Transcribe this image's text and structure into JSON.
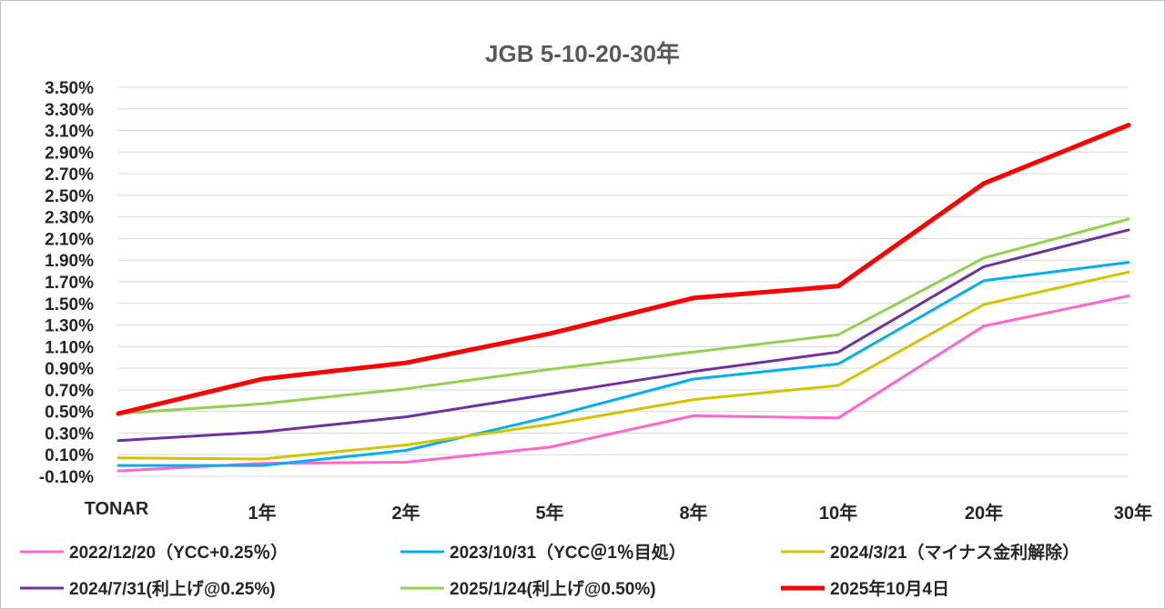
{
  "chart_data": {
    "type": "line",
    "title": "JGB 5-10-20-30年",
    "categories": [
      "TONAR",
      "1年",
      "2年",
      "5年",
      "8年",
      "10年",
      "20年",
      "30年"
    ],
    "y_tick_labels": [
      "-0.10%",
      "0.10%",
      "0.30%",
      "0.50%",
      "0.70%",
      "0.90%",
      "1.10%",
      "1.30%",
      "1.50%",
      "1.70%",
      "1.90%",
      "2.10%",
      "2.30%",
      "2.50%",
      "2.70%",
      "2.90%",
      "3.10%",
      "3.30%",
      "3.50%"
    ],
    "ylim": [
      -0.1,
      3.5
    ],
    "y_unit": "%",
    "grid": true,
    "legend_position": "bottom",
    "series": [
      {
        "name": "2022/12/20（YCC+0.25％）",
        "color": "#ff66cc",
        "values": [
          -0.05,
          0.02,
          0.03,
          0.17,
          0.46,
          0.44,
          1.29,
          1.57
        ]
      },
      {
        "name": "2023/10/31（YCC＠1％目処）",
        "color": "#00b0f0",
        "values": [
          0.0,
          0.0,
          0.14,
          0.45,
          0.8,
          0.94,
          1.71,
          1.88
        ]
      },
      {
        "name": "2024/3/21（マイナス金利解除）",
        "color": "#d4c400",
        "values": [
          0.07,
          0.06,
          0.19,
          0.38,
          0.61,
          0.74,
          1.49,
          1.79
        ]
      },
      {
        "name": "2024/7/31(利上げ@0.25%)",
        "color": "#7030a0",
        "values": [
          0.23,
          0.31,
          0.45,
          0.66,
          0.87,
          1.05,
          1.84,
          2.18
        ]
      },
      {
        "name": "2025/1/24(利上げ@0.50%)",
        "color": "#92d050",
        "values": [
          0.48,
          0.57,
          0.71,
          0.89,
          1.05,
          1.21,
          1.92,
          2.28
        ]
      },
      {
        "name": "2025年10月4日",
        "color": "#ff0000",
        "values": [
          0.48,
          0.8,
          0.95,
          1.22,
          1.55,
          1.66,
          2.61,
          3.15
        ]
      }
    ]
  }
}
